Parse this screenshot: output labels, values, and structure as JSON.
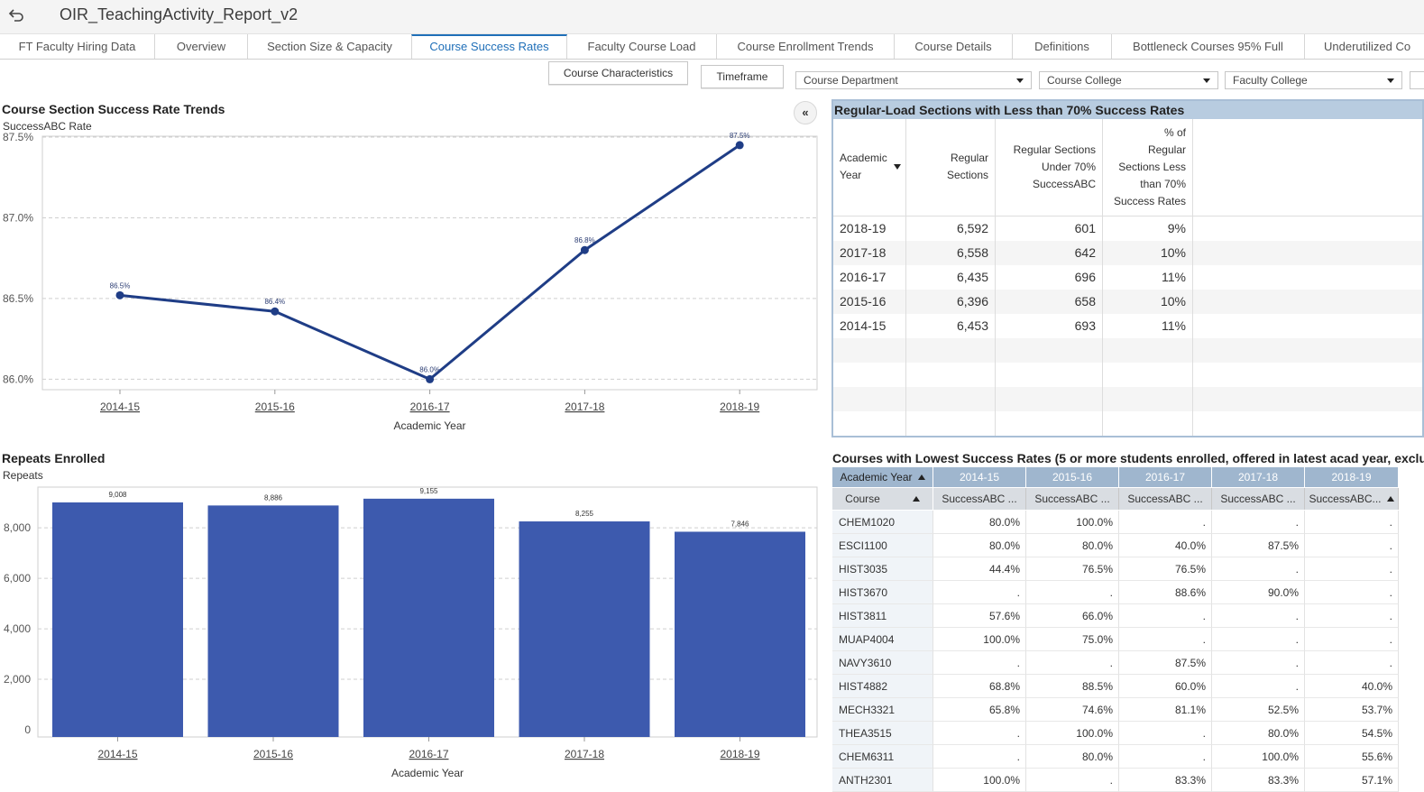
{
  "app": {
    "title": "OIR_TeachingActivity_Report_v2",
    "back_icon": "back-arrow-icon"
  },
  "tabs": [
    {
      "label": "FT Faculty Hiring Data",
      "active": false
    },
    {
      "label": "Overview",
      "active": false
    },
    {
      "label": "Section Size & Capacity",
      "active": false
    },
    {
      "label": "Course Success Rates",
      "active": true
    },
    {
      "label": "Faculty Course Load",
      "active": false
    },
    {
      "label": "Course Enrollment Trends",
      "active": false
    },
    {
      "label": "Course Details",
      "active": false
    },
    {
      "label": "Definitions",
      "active": false
    },
    {
      "label": "Bottleneck Courses 95% Full",
      "active": false
    },
    {
      "label": "Underutilized Co",
      "active": false
    }
  ],
  "controls": {
    "course_characteristics": "Course Characteristics",
    "timeframe": "Timeframe",
    "course_department": "Course Department",
    "course_college": "Course College",
    "faculty_college": "Faculty College"
  },
  "colors": {
    "line": "#1f3d86",
    "bar": "#3d5aae",
    "accent": "#1f6fb8",
    "table_header": "#b8cce0"
  },
  "line_panel": {
    "title": "Course Section Success Rate Trends",
    "collapse_icon": "double-chevron-left-icon"
  },
  "bar_panel": {
    "title": "Repeats Enrolled"
  },
  "chart_data": [
    {
      "type": "line",
      "title": "Course Section Success Rate Trends",
      "xlabel": "Academic Year",
      "ylabel": "SuccessABC Rate",
      "x": [
        "2014-15",
        "2015-16",
        "2016-17",
        "2017-18",
        "2018-19"
      ],
      "y": [
        86.52,
        86.42,
        86.0,
        86.8,
        87.45
      ],
      "data_labels": [
        "86.5%",
        "86.4%",
        "86.0%",
        "86.8%",
        "87.5%"
      ],
      "yticks": [
        "86.0%",
        "86.5%",
        "87.0%",
        "87.5%"
      ],
      "ylim": [
        86.0,
        87.5
      ],
      "grid": true
    },
    {
      "type": "bar",
      "title": "Repeats Enrolled",
      "xlabel": "Academic Year",
      "ylabel": "Repeats",
      "categories": [
        "2014-15",
        "2015-16",
        "2016-17",
        "2017-18",
        "2018-19"
      ],
      "values": [
        9008,
        8886,
        9155,
        8255,
        7846
      ],
      "data_labels": [
        "9,008",
        "8,886",
        "9,155",
        "8,255",
        "7,846"
      ],
      "yticks": [
        "0",
        "2,000",
        "4,000",
        "6,000",
        "8,000"
      ],
      "ylim": [
        0,
        9000
      ],
      "grid": true
    }
  ],
  "table1": {
    "title": "Regular-Load Sections with Less than 70% Success Rates",
    "headers": {
      "year_1": "Academic",
      "year_2": "Year",
      "reg_1": "Regular",
      "reg_2": "Sections",
      "under_1": "Regular Sections",
      "under_2": "Under 70%",
      "under_3": "SuccessABC",
      "pct_1": "% of",
      "pct_2": "Regular",
      "pct_3": "Sections Less",
      "pct_4": "than 70%",
      "pct_5": "Success Rates"
    },
    "rows": [
      {
        "year": "2018-19",
        "regular": "6,592",
        "under": "601",
        "pct": "9%"
      },
      {
        "year": "2017-18",
        "regular": "6,558",
        "under": "642",
        "pct": "10%"
      },
      {
        "year": "2016-17",
        "regular": "6,435",
        "under": "696",
        "pct": "11%"
      },
      {
        "year": "2015-16",
        "regular": "6,396",
        "under": "658",
        "pct": "10%"
      },
      {
        "year": "2014-15",
        "regular": "6,453",
        "under": "693",
        "pct": "11%"
      }
    ]
  },
  "table2": {
    "title": "Courses with Lowest Success Rates (5 or more students enrolled, offered in latest acad year, excludes",
    "corner_top": "Academic Year",
    "corner_bottom": "Course",
    "years": [
      "2014-15",
      "2015-16",
      "2016-17",
      "2017-18",
      "2018-19"
    ],
    "measures": [
      "SuccessABC ...",
      "SuccessABC ...",
      "SuccessABC ...",
      "SuccessABC ...",
      "SuccessABC..."
    ],
    "rows": [
      {
        "course": "CHEM1020",
        "v": [
          "80.0%",
          "100.0%",
          ".",
          ".",
          "."
        ]
      },
      {
        "course": "ESCI1100",
        "v": [
          "80.0%",
          "80.0%",
          "40.0%",
          "87.5%",
          "."
        ]
      },
      {
        "course": "HIST3035",
        "v": [
          "44.4%",
          "76.5%",
          "76.5%",
          ".",
          "."
        ]
      },
      {
        "course": "HIST3670",
        "v": [
          ".",
          ".",
          "88.6%",
          "90.0%",
          "."
        ]
      },
      {
        "course": "HIST3811",
        "v": [
          "57.6%",
          "66.0%",
          ".",
          ".",
          "."
        ]
      },
      {
        "course": "MUAP4004",
        "v": [
          "100.0%",
          "75.0%",
          ".",
          ".",
          "."
        ]
      },
      {
        "course": "NAVY3610",
        "v": [
          ".",
          ".",
          "87.5%",
          ".",
          "."
        ]
      },
      {
        "course": "HIST4882",
        "v": [
          "68.8%",
          "88.5%",
          "60.0%",
          ".",
          "40.0%"
        ]
      },
      {
        "course": "MECH3321",
        "v": [
          "65.8%",
          "74.6%",
          "81.1%",
          "52.5%",
          "53.7%"
        ]
      },
      {
        "course": "THEA3515",
        "v": [
          ".",
          "100.0%",
          ".",
          "80.0%",
          "54.5%"
        ]
      },
      {
        "course": "CHEM6311",
        "v": [
          ".",
          "80.0%",
          ".",
          "100.0%",
          "55.6%"
        ]
      },
      {
        "course": "ANTH2301",
        "v": [
          "100.0%",
          ".",
          "83.3%",
          "83.3%",
          "57.1%"
        ]
      }
    ]
  }
}
